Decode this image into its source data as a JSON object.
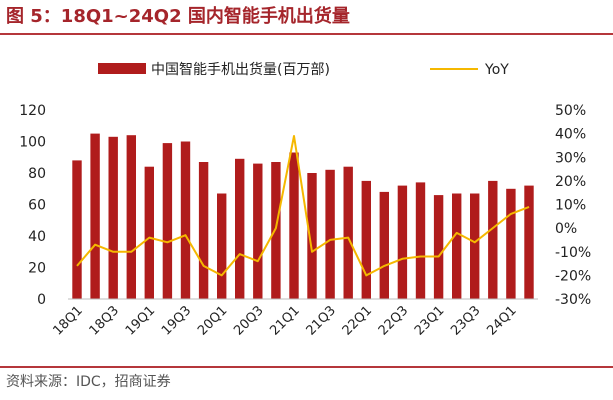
{
  "figure": {
    "title": "图 5：18Q1~24Q2 国内智能手机出货量",
    "source": "资料来源：IDC，招商证券"
  },
  "colors": {
    "bar": "#b01c1c",
    "line": "#f5b800",
    "title": "#a5252b"
  },
  "chart_data": {
    "type": "bar",
    "categories": [
      "18Q1",
      "18Q2",
      "18Q3",
      "18Q4",
      "19Q1",
      "19Q2",
      "19Q3",
      "19Q4",
      "20Q1",
      "20Q2",
      "20Q3",
      "20Q4",
      "21Q1",
      "21Q2",
      "21Q3",
      "21Q4",
      "22Q1",
      "22Q2",
      "22Q3",
      "22Q4",
      "23Q1",
      "23Q2",
      "23Q3",
      "23Q4",
      "24Q1",
      "24Q2"
    ],
    "x_tick_labels": [
      "18Q1",
      "18Q3",
      "19Q1",
      "19Q3",
      "20Q1",
      "20Q3",
      "21Q1",
      "21Q3",
      "22Q1",
      "22Q3",
      "23Q1",
      "23Q3",
      "24Q1"
    ],
    "series": [
      {
        "name": "中国智能手机出货量(百万部)",
        "type": "bar",
        "axis": "left",
        "values": [
          88,
          105,
          103,
          104,
          84,
          99,
          100,
          87,
          67,
          89,
          86,
          87,
          93,
          80,
          82,
          84,
          75,
          68,
          72,
          74,
          66,
          67,
          67,
          75,
          70,
          72
        ]
      },
      {
        "name": "YoY",
        "type": "line",
        "axis": "right",
        "values": [
          -0.16,
          -0.07,
          -0.1,
          -0.1,
          -0.04,
          -0.06,
          -0.03,
          -0.16,
          -0.2,
          -0.11,
          -0.14,
          0.0,
          0.39,
          -0.1,
          -0.05,
          -0.04,
          -0.2,
          -0.16,
          -0.13,
          -0.12,
          -0.12,
          -0.02,
          -0.06,
          0.0,
          0.06,
          0.09
        ]
      }
    ],
    "y_left": {
      "ylim": [
        0,
        120
      ],
      "ticks": [
        0,
        20,
        40,
        60,
        80,
        100,
        120
      ]
    },
    "y_right": {
      "ylim": [
        -0.3,
        0.5
      ],
      "ticks": [
        "-30%",
        "-20%",
        "-10%",
        "0%",
        "10%",
        "20%",
        "30%",
        "40%",
        "50%"
      ]
    },
    "legend_position": "top",
    "grid": false
  }
}
